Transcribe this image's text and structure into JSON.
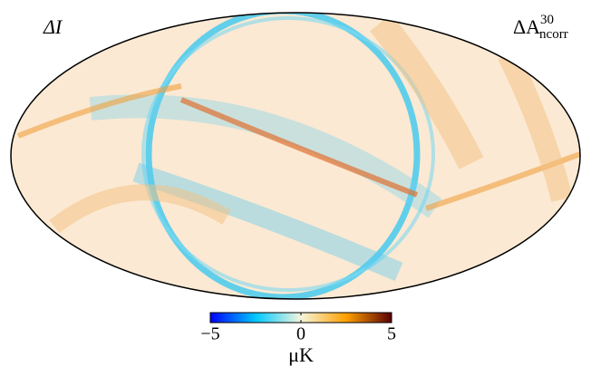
{
  "chart_data": {
    "type": "skymap",
    "left_label": "ΔI",
    "right_label": {
      "main": "ΔA",
      "sup": "30",
      "sub": "ncorr"
    },
    "colormap": [
      "#0000ff",
      "#00c8ff",
      "#f5f5dc",
      "#ffa000",
      "#5a0000"
    ],
    "colorbar": {
      "lim": [
        -5,
        5
      ],
      "ticks": [
        {
          "value": -5,
          "label": "−5"
        },
        0,
        5
      ],
      "label": "μK"
    }
  }
}
